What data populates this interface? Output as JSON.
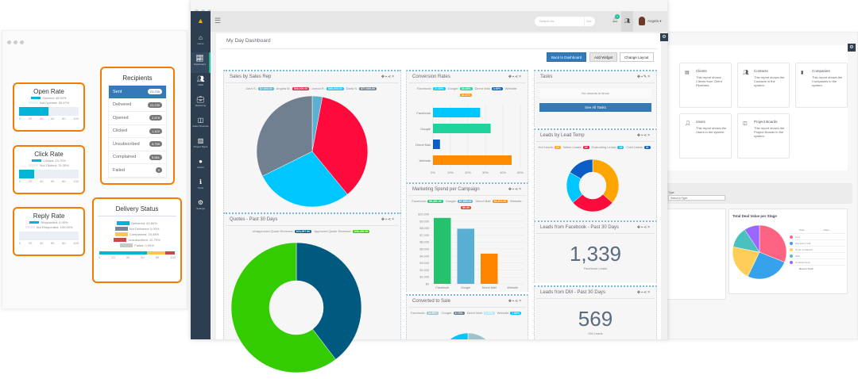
{
  "email_stats": {
    "open_rate": {
      "title": "Open Rate",
      "legend": [
        "Opened: 49.53%",
        "Not Opened: 50.47%"
      ],
      "value": 49.53
    },
    "click_rate": {
      "title": "Click Rate",
      "legend": [
        "Clicked: 24.70%",
        "Not Clicked: 75.30%"
      ],
      "value": 24.7
    },
    "reply_rate": {
      "title": "Reply Rate",
      "legend": [
        "Responded: 0.00%",
        "Not Responded: 100.00%"
      ],
      "value": 0
    },
    "ticks": [
      "0",
      "20",
      "40",
      "60",
      "80",
      "100"
    ],
    "recipients": {
      "title": "Recipients",
      "items": [
        {
          "label": "Sent",
          "count": "23,235"
        },
        {
          "label": "Delivered",
          "count": "23,235"
        },
        {
          "label": "Opened",
          "count": "2,878"
        },
        {
          "label": "Clicked",
          "count": "1,422"
        },
        {
          "label": "Unsubscribed",
          "count": "5,768"
        },
        {
          "label": "Complained",
          "count": "5,661"
        },
        {
          "label": "Failed",
          "count": "0"
        }
      ]
    },
    "delivery": {
      "title": "Delivery Status",
      "items": [
        {
          "label": "Delivered: 62.84%",
          "color": "#00b4d8",
          "value": 62.84
        },
        {
          "label": "Not Delivered: 0.00%",
          "color": "#7a8594",
          "value": 0
        },
        {
          "label": "Complained: 24.38%",
          "color": "#fbc94a",
          "value": 24.38
        },
        {
          "label": "Unsubscribed: 12.79%",
          "color": "#c9484a",
          "value": 12.79
        },
        {
          "label": "Failed: 0.00%",
          "color": "#c8c8c8",
          "value": 0
        }
      ]
    }
  },
  "app": {
    "search_placeholder": "Search for...",
    "search_go": "Go!",
    "notif_count": "0",
    "user": "Angela",
    "sidebar": [
      "Home",
      "Dashboard",
      "CRM",
      "Marketing",
      "Sales Pipelines",
      "Project Mgmt",
      "Admin",
      "Tools",
      "Settings"
    ],
    "page_title": "My Day Dashboard",
    "buttons": {
      "back": "Back to Dashboard",
      "add": "Add Widget",
      "layout": "Change Layout"
    },
    "accent": "#337ab7"
  },
  "widgets": {
    "sales_rep": {
      "title": "Sales by Sales Rep",
      "series": [
        {
          "name": "John S.",
          "label": "$7,000.00",
          "value": 7000,
          "color": "#5ab0d0"
        },
        {
          "name": "Angela M.",
          "label": "$86,000.00",
          "value": 86000,
          "color": "#ff0a3c"
        },
        {
          "name": "Jarrod R.",
          "label": "$68,000.00",
          "value": 68000,
          "color": "#00c6ff"
        },
        {
          "name": "Darla S.",
          "label": "$77,000.00",
          "value": 77000,
          "color": "#708090"
        }
      ]
    },
    "quotes": {
      "title": "Quotes - Past 30 Days",
      "series": [
        {
          "name": "Unapproved Quote Revenue",
          "label": "$23,997.80",
          "value": 23997.8,
          "color": "#005a80"
        },
        {
          "name": "Approved Quote Revenue",
          "label": "$36,469.09",
          "value": 36469.09,
          "color": "#33cc00"
        }
      ]
    },
    "conversion": {
      "title": "Conversion Rates",
      "series": [
        {
          "name": "Facebook",
          "label": "27.00%",
          "value": 27,
          "color": "#00c6ff"
        },
        {
          "name": "Google",
          "label": "33.00%",
          "value": 33,
          "color": "#20d39b"
        },
        {
          "name": "Direct Mail",
          "label": "4.00%",
          "value": 4,
          "color": "#0a5cc7"
        },
        {
          "name": "Website",
          "label": "45.00%",
          "value": 45,
          "color": "#ff8c00"
        }
      ],
      "ticks": [
        "0%",
        "10%",
        "20%",
        "30%",
        "40%",
        "50%"
      ]
    },
    "marketing": {
      "title": "Marketing Spend per Campaign",
      "series": [
        {
          "name": "Facebook",
          "label": "$9,451.00",
          "value": 9451,
          "color": "#25c26e"
        },
        {
          "name": "Google",
          "label": "$7,899.00",
          "value": 7899,
          "color": "#58aed3"
        },
        {
          "name": "Direct Mail",
          "label": "$4,331.00",
          "value": 4331,
          "color": "#ff8400"
        },
        {
          "name": "Website",
          "label": "$0.00",
          "value": 0,
          "color": "#d7402a"
        }
      ],
      "yticks": [
        "$0",
        "$1,000",
        "$2,000",
        "$3,000",
        "$4,000",
        "$5,000",
        "$6,000",
        "$7,000",
        "$8,000",
        "$9,000",
        "$10,000"
      ]
    },
    "converted": {
      "title": "Converted to Sale",
      "series": [
        {
          "name": "Facebook",
          "label": "18.58%",
          "value": 18.58,
          "color": "#9dc3cc"
        },
        {
          "name": "Google",
          "label": "8.73%",
          "value": 8.73,
          "color": "#667788"
        },
        {
          "name": "Direct Mail",
          "label": "1.00%",
          "value": 1,
          "color": "#b3e5fc"
        },
        {
          "name": "Website",
          "label": "7.80%",
          "value": 7.8,
          "color": "#00c6ff"
        }
      ]
    },
    "tasks": {
      "title": "Tasks",
      "empty": "No records to show",
      "button": "See All Tasks"
    },
    "lead_temp": {
      "title": "Leads by Lead Temp",
      "series": [
        {
          "name": "Hot Leads",
          "label": "24",
          "value": 24,
          "color": "#ffa500"
        },
        {
          "name": "Warm Leads",
          "label": "18",
          "value": 18,
          "color": "#ff0a3c"
        },
        {
          "name": "Evaluating Leads",
          "label": "13",
          "value": 13,
          "color": "#00c6ff"
        },
        {
          "name": "Cold Leads",
          "label": "11",
          "value": 11,
          "color": "#0a5cc7"
        }
      ]
    },
    "fb_leads": {
      "title": "Leads from Facebook - Past 30 Days",
      "value": "1,339",
      "caption": "Facebook Leads"
    },
    "dm_leads": {
      "title": "Leads from DM - Past 30 Days",
      "value": "569",
      "caption": "DM Leads"
    }
  },
  "reports": {
    "cards": [
      {
        "title": "Clients",
        "desc": "This report shows Clients from Client Pipelines."
      },
      {
        "title": "Contacts",
        "desc": "This report shows the Contacts in the system."
      },
      {
        "title": "Companies",
        "desc": "This report shows the Companies in the system."
      },
      {
        "title": "Users",
        "desc": "This report shows the Users in the system."
      },
      {
        "title": "Project Boards",
        "desc": "This report shows the Project Boards in the system."
      }
    ],
    "type_label": "Type",
    "type_placeholder": "Select a Type",
    "deal_title": "Total Deal Value per Stage",
    "deal_series": [
      {
        "name": "Lost",
        "value": 370,
        "color": "#ff6384"
      },
      {
        "name": "Discovery Call",
        "value": 310,
        "color": "#36a2eb"
      },
      {
        "name": "To be Contacted",
        "value": 250,
        "color": "#ffce56"
      },
      {
        "name": "Won",
        "value": 150,
        "color": "#4bc0c0"
      },
      {
        "name": "Contract Sent",
        "value": 110,
        "color": "#9966ff"
      }
    ],
    "table_headers": [
      "Data",
      "Value"
    ],
    "report_total": "Report Total"
  }
}
